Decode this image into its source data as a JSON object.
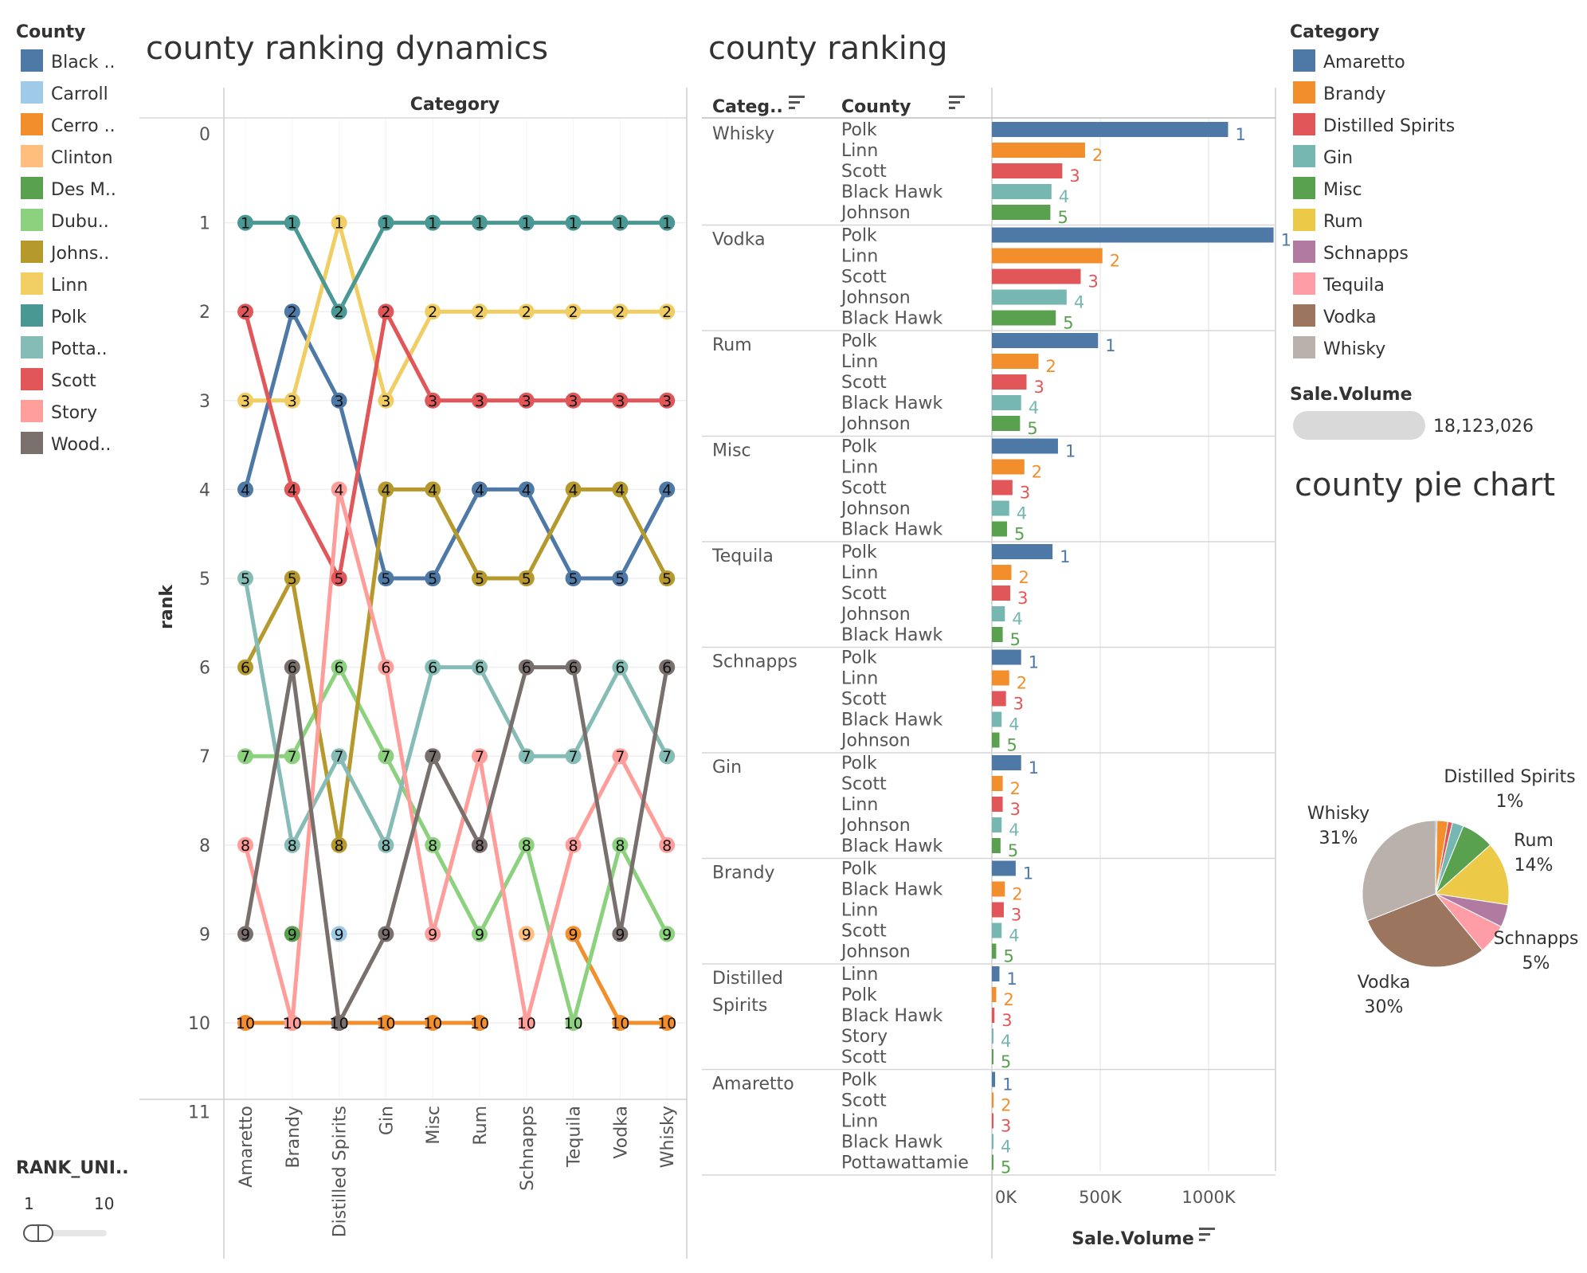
{
  "dashboard": {
    "bump_title": "county ranking dynamics",
    "bar_title": "county ranking",
    "pie_title": "county pie chart"
  },
  "county_legend": {
    "title": "County",
    "items": [
      {
        "label": "Black ..",
        "color": "#4e79a7"
      },
      {
        "label": "Carroll",
        "color": "#a0cbe8"
      },
      {
        "label": "Cerro ..",
        "color": "#f28e2b"
      },
      {
        "label": "Clinton",
        "color": "#ffbe7d"
      },
      {
        "label": "Des M..",
        "color": "#59a14f"
      },
      {
        "label": "Dubu..",
        "color": "#8cd17d"
      },
      {
        "label": "Johns..",
        "color": "#b6992d"
      },
      {
        "label": "Linn",
        "color": "#f1ce63"
      },
      {
        "label": "Polk",
        "color": "#499894"
      },
      {
        "label": "Potta..",
        "color": "#86bcb6"
      },
      {
        "label": "Scott",
        "color": "#e15759"
      },
      {
        "label": "Story",
        "color": "#ff9d9a"
      },
      {
        "label": "Wood..",
        "color": "#79706e"
      }
    ]
  },
  "category_legend": {
    "title": "Category",
    "items": [
      {
        "label": "Amaretto",
        "color": "#4e79a7"
      },
      {
        "label": "Brandy",
        "color": "#f28e2b"
      },
      {
        "label": "Distilled Spirits",
        "color": "#e15759"
      },
      {
        "label": "Gin",
        "color": "#76b7b2"
      },
      {
        "label": "Misc",
        "color": "#59a14f"
      },
      {
        "label": "Rum",
        "color": "#edc948"
      },
      {
        "label": "Schnapps",
        "color": "#b07aa1"
      },
      {
        "label": "Tequila",
        "color": "#ff9da7"
      },
      {
        "label": "Vodka",
        "color": "#9c755f"
      },
      {
        "label": "Whisky",
        "color": "#bab0ac"
      }
    ]
  },
  "size_legend": {
    "title": "Sale.Volume",
    "value": "18,123,026"
  },
  "rank_filter": {
    "title": "RANK_UNI..",
    "min": "1",
    "max": "10"
  },
  "chart_data": [
    {
      "type": "line",
      "subtype": "bump",
      "title": "county ranking dynamics",
      "xlabel": "Category",
      "ylabel": "rank",
      "y_ticks": [
        "0",
        "1",
        "2",
        "3",
        "4",
        "5",
        "6",
        "7",
        "8",
        "9",
        "10",
        "11"
      ],
      "ylim": [
        0,
        11
      ],
      "y_reversed": true,
      "categories": [
        "Amaretto",
        "Brandy",
        "Distilled Spirits",
        "Gin",
        "Misc",
        "Rum",
        "Schnapps",
        "Tequila",
        "Vodka",
        "Whisky"
      ],
      "series": [
        {
          "name": "Black ..",
          "color": "#4e79a7",
          "values": [
            4,
            2,
            3,
            5,
            5,
            4,
            4,
            5,
            5,
            4
          ]
        },
        {
          "name": "Carroll",
          "color": "#a0cbe8",
          "values": [
            null,
            null,
            9,
            null,
            null,
            null,
            null,
            null,
            null,
            null
          ]
        },
        {
          "name": "Cerro ..",
          "color": "#f28e2b",
          "values": [
            10,
            10,
            10,
            10,
            10,
            10,
            null,
            9,
            10,
            10
          ]
        },
        {
          "name": "Clinton",
          "color": "#ffbe7d",
          "values": [
            null,
            null,
            null,
            null,
            null,
            null,
            9,
            null,
            null,
            null
          ]
        },
        {
          "name": "Des M..",
          "color": "#59a14f",
          "values": [
            null,
            9,
            null,
            null,
            null,
            null,
            null,
            null,
            null,
            null
          ]
        },
        {
          "name": "Dubu..",
          "color": "#8cd17d",
          "values": [
            7,
            7,
            6,
            7,
            8,
            9,
            8,
            10,
            8,
            9
          ]
        },
        {
          "name": "Johns..",
          "color": "#b6992d",
          "values": [
            6,
            5,
            8,
            4,
            4,
            5,
            5,
            4,
            4,
            5
          ]
        },
        {
          "name": "Linn",
          "color": "#f1ce63",
          "values": [
            3,
            3,
            1,
            3,
            2,
            2,
            2,
            2,
            2,
            2
          ]
        },
        {
          "name": "Polk",
          "color": "#499894",
          "values": [
            1,
            1,
            2,
            1,
            1,
            1,
            1,
            1,
            1,
            1
          ]
        },
        {
          "name": "Potta..",
          "color": "#86bcb6",
          "values": [
            5,
            8,
            7,
            8,
            6,
            6,
            7,
            7,
            6,
            7
          ]
        },
        {
          "name": "Scott",
          "color": "#e15759",
          "values": [
            2,
            4,
            5,
            2,
            3,
            3,
            3,
            3,
            3,
            3
          ]
        },
        {
          "name": "Story",
          "color": "#ff9d9a",
          "values": [
            8,
            10,
            4,
            6,
            9,
            7,
            10,
            8,
            7,
            8
          ]
        },
        {
          "name": "Wood..",
          "color": "#79706e",
          "values": [
            9,
            6,
            10,
            9,
            7,
            8,
            6,
            6,
            9,
            6
          ]
        }
      ]
    },
    {
      "type": "bar",
      "orientation": "horizontal",
      "title": "county ranking",
      "col_headers": [
        "Categ..",
        "County"
      ],
      "xlabel": "Sale.Volume",
      "x_ticks": [
        {
          "value": 0,
          "label": "0K"
        },
        {
          "value": 500000,
          "label": "500K"
        },
        {
          "value": 1000000,
          "label": "1000K"
        }
      ],
      "xlim": [
        0,
        1300000
      ],
      "rank_colors": [
        "#4e79a7",
        "#f28e2b",
        "#e15759",
        "#76b7b2",
        "#59a14f"
      ],
      "groups": [
        {
          "category": "Whisky",
          "rows": [
            {
              "county": "Polk",
              "rank": "1",
              "value": 1090000
            },
            {
              "county": "Linn",
              "rank": "2",
              "value": 430000
            },
            {
              "county": "Scott",
              "rank": "3",
              "value": 325000
            },
            {
              "county": "Black Hawk",
              "rank": "4",
              "value": 275000
            },
            {
              "county": "Johnson",
              "rank": "5",
              "value": 270000
            }
          ]
        },
        {
          "category": "Vodka",
          "rows": [
            {
              "county": "Polk",
              "rank": "1",
              "value": 1300000
            },
            {
              "county": "Linn",
              "rank": "2",
              "value": 510000
            },
            {
              "county": "Scott",
              "rank": "3",
              "value": 410000
            },
            {
              "county": "Johnson",
              "rank": "4",
              "value": 345000
            },
            {
              "county": "Black Hawk",
              "rank": "5",
              "value": 295000
            }
          ]
        },
        {
          "category": "Rum",
          "rows": [
            {
              "county": "Polk",
              "rank": "1",
              "value": 490000
            },
            {
              "county": "Linn",
              "rank": "2",
              "value": 215000
            },
            {
              "county": "Scott",
              "rank": "3",
              "value": 160000
            },
            {
              "county": "Black Hawk",
              "rank": "4",
              "value": 135000
            },
            {
              "county": "Johnson",
              "rank": "5",
              "value": 130000
            }
          ]
        },
        {
          "category": "Misc",
          "rows": [
            {
              "county": "Polk",
              "rank": "1",
              "value": 305000
            },
            {
              "county": "Linn",
              "rank": "2",
              "value": 150000
            },
            {
              "county": "Scott",
              "rank": "3",
              "value": 95000
            },
            {
              "county": "Johnson",
              "rank": "4",
              "value": 80000
            },
            {
              "county": "Black Hawk",
              "rank": "5",
              "value": 70000
            }
          ]
        },
        {
          "category": "Tequila",
          "rows": [
            {
              "county": "Polk",
              "rank": "1",
              "value": 280000
            },
            {
              "county": "Linn",
              "rank": "2",
              "value": 90000
            },
            {
              "county": "Scott",
              "rank": "3",
              "value": 85000
            },
            {
              "county": "Johnson",
              "rank": "4",
              "value": 60000
            },
            {
              "county": "Black Hawk",
              "rank": "5",
              "value": 50000
            }
          ]
        },
        {
          "category": "Schnapps",
          "rows": [
            {
              "county": "Polk",
              "rank": "1",
              "value": 135000
            },
            {
              "county": "Linn",
              "rank": "2",
              "value": 80000
            },
            {
              "county": "Scott",
              "rank": "3",
              "value": 65000
            },
            {
              "county": "Black Hawk",
              "rank": "4",
              "value": 45000
            },
            {
              "county": "Johnson",
              "rank": "5",
              "value": 35000
            }
          ]
        },
        {
          "category": "Gin",
          "rows": [
            {
              "county": "Polk",
              "rank": "1",
              "value": 135000
            },
            {
              "county": "Scott",
              "rank": "2",
              "value": 50000
            },
            {
              "county": "Linn",
              "rank": "3",
              "value": 50000
            },
            {
              "county": "Johnson",
              "rank": "4",
              "value": 45000
            },
            {
              "county": "Black Hawk",
              "rank": "5",
              "value": 40000
            }
          ]
        },
        {
          "category": "Brandy",
          "rows": [
            {
              "county": "Polk",
              "rank": "1",
              "value": 110000
            },
            {
              "county": "Black Hawk",
              "rank": "2",
              "value": 60000
            },
            {
              "county": "Linn",
              "rank": "3",
              "value": 55000
            },
            {
              "county": "Scott",
              "rank": "4",
              "value": 45000
            },
            {
              "county": "Johnson",
              "rank": "5",
              "value": 20000
            }
          ]
        },
        {
          "category": "Distilled Spirits",
          "rows": [
            {
              "county": "Linn",
              "rank": "1",
              "value": 35000
            },
            {
              "county": "Polk",
              "rank": "2",
              "value": 20000
            },
            {
              "county": "Black Hawk",
              "rank": "3",
              "value": 12000
            },
            {
              "county": "Story",
              "rank": "4",
              "value": 6000
            },
            {
              "county": "Scott",
              "rank": "5",
              "value": 6000
            }
          ]
        },
        {
          "category": "Amaretto",
          "rows": [
            {
              "county": "Polk",
              "rank": "1",
              "value": 15000
            },
            {
              "county": "Scott",
              "rank": "2",
              "value": 8000
            },
            {
              "county": "Linn",
              "rank": "3",
              "value": 7000
            },
            {
              "county": "Black Hawk",
              "rank": "4",
              "value": 6000
            },
            {
              "county": "Pottawattamie",
              "rank": "5",
              "value": 5000
            }
          ]
        }
      ]
    },
    {
      "type": "pie",
      "title": "county pie chart",
      "slices": [
        {
          "label": "Amaretto",
          "value": 0.3,
          "color": "#4e79a7"
        },
        {
          "label": "Brandy",
          "value": 2.4,
          "color": "#f28e2b"
        },
        {
          "label": "Distilled Spirits",
          "value": 1,
          "color": "#e15759",
          "display": "1%"
        },
        {
          "label": "Gin",
          "value": 2.5,
          "color": "#76b7b2"
        },
        {
          "label": "Misc",
          "value": 7.2,
          "color": "#59a14f"
        },
        {
          "label": "Rum",
          "value": 14,
          "color": "#edc948",
          "display": "14%"
        },
        {
          "label": "Schnapps",
          "value": 5,
          "color": "#b07aa1",
          "display": "5%"
        },
        {
          "label": "Tequila",
          "value": 6.6,
          "color": "#ff9da7"
        },
        {
          "label": "Vodka",
          "value": 30,
          "color": "#9c755f",
          "display": "30%"
        },
        {
          "label": "Whisky",
          "value": 31,
          "color": "#bab0ac",
          "display": "31%"
        }
      ]
    }
  ]
}
